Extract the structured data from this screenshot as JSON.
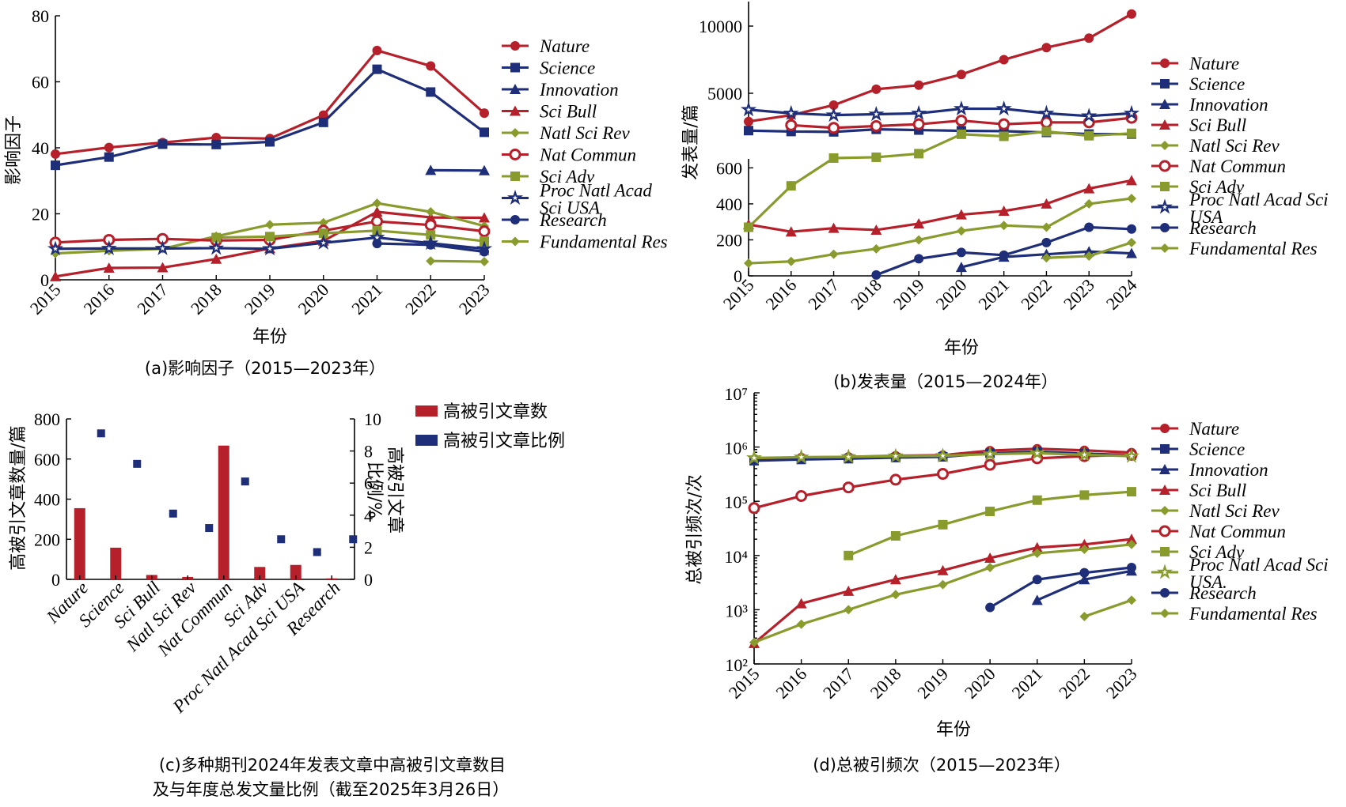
{
  "colors": {
    "red": "#b5202a",
    "navy": "#1e2e78",
    "olive": "#8a9b2e"
  },
  "chart_data": [
    {
      "id": "a",
      "type": "line",
      "caption": "(a)影响因子（2015—2023年）",
      "xlabel": "年份",
      "ylabel": "影响因子",
      "x": [
        2015,
        2016,
        2017,
        2018,
        2019,
        2020,
        2021,
        2022,
        2023
      ],
      "ylim": [
        0,
        80
      ],
      "yticks": [
        0,
        20,
        40,
        60,
        80
      ],
      "series": [
        {
          "name": "Nature",
          "color": "red",
          "marker": "circle",
          "values": [
            38.1,
            40.1,
            41.6,
            43.1,
            42.8,
            49.9,
            69.5,
            64.8,
            50.5
          ]
        },
        {
          "name": "Science",
          "color": "navy",
          "marker": "square",
          "values": [
            34.7,
            37.2,
            41.1,
            41.0,
            41.8,
            47.7,
            63.8,
            56.9,
            44.7
          ]
        },
        {
          "name": "Innovation",
          "color": "navy",
          "marker": "triangle",
          "values": [
            null,
            null,
            null,
            null,
            null,
            null,
            null,
            33.2,
            33.1
          ]
        },
        {
          "name": "Sci Bull",
          "color": "red",
          "marker": "triangle",
          "values": [
            1.0,
            3.6,
            3.7,
            6.3,
            9.5,
            11.8,
            20.6,
            18.9,
            18.8
          ]
        },
        {
          "name": "Natl Sci Rev",
          "color": "olive",
          "marker": "diamond",
          "values": [
            8.0,
            8.8,
            9.4,
            13.2,
            16.7,
            17.3,
            23.2,
            20.6,
            16.3
          ]
        },
        {
          "name": "Nat Commun",
          "color": "red",
          "marker": "ocircle",
          "values": [
            11.3,
            12.1,
            12.4,
            11.9,
            12.1,
            14.9,
            17.7,
            16.6,
            14.7
          ]
        },
        {
          "name": "Sci Adv",
          "color": "olive",
          "marker": "square",
          "values": [
            null,
            null,
            null,
            12.8,
            13.1,
            14.1,
            14.9,
            13.6,
            11.7
          ]
        },
        {
          "name": "Proc Natl Acad Sci USA",
          "color": "navy",
          "marker": "ostar",
          "values": [
            9.4,
            9.5,
            9.5,
            9.6,
            9.4,
            11.2,
            12.8,
            11.1,
            9.4
          ]
        },
        {
          "name": "Research",
          "color": "navy",
          "marker": "circle",
          "values": [
            null,
            null,
            null,
            null,
            null,
            null,
            11.0,
            10.6,
            8.5
          ]
        },
        {
          "name": "Fundamental Res",
          "color": "olive",
          "marker": "diamond",
          "values": [
            null,
            null,
            null,
            null,
            null,
            null,
            null,
            5.7,
            5.5
          ]
        }
      ]
    },
    {
      "id": "b",
      "type": "line",
      "caption": "(b)发表量（2015—2024年）",
      "xlabel": "年份",
      "ylabel": "发表量/篇",
      "x": [
        2015,
        2016,
        2017,
        2018,
        2019,
        2020,
        2021,
        2022,
        2023,
        2024
      ],
      "yticks_upper": [
        5000,
        10000
      ],
      "yticks_lower": [
        0,
        200,
        400,
        600
      ],
      "series": [
        {
          "name": "Nature",
          "color": "red",
          "marker": "circle",
          "values": [
            3450,
            3800,
            4350,
            5300,
            5600,
            6400,
            7500,
            8400,
            9100,
            10900
          ]
        },
        {
          "name": "Science",
          "color": "navy",
          "marker": "square",
          "values": [
            2950,
            2900,
            2880,
            3020,
            2980,
            2940,
            2920,
            2850,
            2760,
            2760
          ]
        },
        {
          "name": "Innovation",
          "color": "navy",
          "marker": "triangle",
          "values": [
            null,
            null,
            null,
            null,
            null,
            48,
            105,
            120,
            135,
            125
          ]
        },
        {
          "name": "Sci Bull",
          "color": "red",
          "marker": "triangle",
          "values": [
            285,
            245,
            265,
            255,
            290,
            340,
            360,
            400,
            485,
            530
          ]
        },
        {
          "name": "Natl Sci Rev",
          "color": "olive",
          "marker": "diamond",
          "values": [
            70,
            80,
            120,
            150,
            200,
            250,
            280,
            270,
            400,
            430
          ]
        },
        {
          "name": "Nat Commun",
          "color": "red",
          "marker": "ocircle",
          "values": [
            null,
            3250,
            3100,
            3200,
            3300,
            3500,
            3300,
            3400,
            3400,
            3650
          ]
        },
        {
          "name": "Sci Adv",
          "color": "olive",
          "marker": "square",
          "values": [
            270,
            500,
            720,
            790,
            1100,
            2750,
            2600,
            2900,
            2650,
            2800
          ]
        },
        {
          "name": "Proc Natl Acad Sci USA",
          "color": "navy",
          "marker": "ostar",
          "values": [
            4100,
            3900,
            3800,
            3850,
            3900,
            4150,
            4150,
            3900,
            3750,
            3900
          ]
        },
        {
          "name": "Research",
          "color": "navy",
          "marker": "circle",
          "values": [
            null,
            null,
            null,
            5,
            95,
            130,
            115,
            185,
            270,
            260
          ]
        },
        {
          "name": "Fundamental Res",
          "color": "olive",
          "marker": "diamond",
          "values": [
            null,
            null,
            null,
            null,
            null,
            null,
            null,
            100,
            110,
            185
          ]
        }
      ]
    },
    {
      "id": "c",
      "type": "bar",
      "caption": [
        "(c)多种期刊2024年发表文章中高被引文章数目",
        "及与年度总发文量比例（截至2025年3月26日）"
      ],
      "ylabel": "高被引文章数量/篇",
      "y2label": [
        "高被引文章",
        "比例/%"
      ],
      "ylim": [
        0,
        800
      ],
      "yticks": [
        0,
        200,
        400,
        600,
        800
      ],
      "y2lim": [
        0,
        10
      ],
      "y2ticks": [
        0,
        2,
        4,
        6,
        8,
        10
      ],
      "categories": [
        "Nature",
        "Science",
        "Sci Bull",
        "Natl Sci Rev",
        "Nat Commun",
        "Sci Adv",
        "Proc Natl Acad Sci USA",
        "Research"
      ],
      "series": [
        {
          "name": "高被引文章数",
          "color": "red",
          "values": [
            355,
            158,
            22,
            12,
            667,
            62,
            72,
            5
          ]
        },
        {
          "name": "高被引文章比例",
          "color": "navy",
          "values": [
            9.1,
            7.2,
            4.1,
            3.2,
            6.1,
            2.5,
            1.7,
            2.5
          ]
        }
      ]
    },
    {
      "id": "d",
      "type": "line",
      "yscale": "log",
      "caption": "(d)总被引频次（2015—2023年）",
      "xlabel": "年份",
      "ylabel": "总被引频次/次",
      "x": [
        2015,
        2016,
        2017,
        2018,
        2019,
        2020,
        2021,
        2022,
        2023
      ],
      "ylim": [
        100,
        10000000
      ],
      "ytick_labels": [
        "10²",
        "10³",
        "10⁴",
        "10⁵",
        "10⁶",
        "10⁷"
      ],
      "series": [
        {
          "name": "Nature",
          "color": "red",
          "marker": "circle",
          "values": [
            590000,
            640000,
            660000,
            690000,
            710000,
            860000,
            930000,
            870000,
            790000
          ]
        },
        {
          "name": "Science",
          "color": "navy",
          "marker": "square",
          "values": [
            560000,
            590000,
            610000,
            640000,
            660000,
            770000,
            820000,
            760000,
            710000
          ]
        },
        {
          "name": "Innovation",
          "color": "navy",
          "marker": "triangle",
          "values": [
            null,
            null,
            null,
            null,
            null,
            null,
            1500,
            3600,
            5200
          ]
        },
        {
          "name": "Sci Bull",
          "color": "red",
          "marker": "triangle",
          "values": [
            240,
            1300,
            2200,
            3600,
            5300,
            9000,
            14000,
            16000,
            20000
          ]
        },
        {
          "name": "Natl Sci Rev",
          "color": "olive",
          "marker": "diamond",
          "values": [
            250,
            540,
            1000,
            1900,
            2900,
            6000,
            11000,
            13000,
            16000
          ]
        },
        {
          "name": "Nat Commun",
          "color": "red",
          "marker": "ocircle",
          "values": [
            75000,
            125000,
            180000,
            250000,
            320000,
            470000,
            620000,
            680000,
            720000
          ]
        },
        {
          "name": "Sci Adv",
          "color": "olive",
          "marker": "square",
          "values": [
            null,
            null,
            10000,
            23000,
            37000,
            65000,
            105000,
            130000,
            150000
          ]
        },
        {
          "name": "Proc Natl Acad Sci USA.",
          "color": "olive",
          "marker": "ostar",
          "values": [
            630000,
            650000,
            660000,
            680000,
            690000,
            740000,
            770000,
            720000,
            680000
          ]
        },
        {
          "name": "Research",
          "color": "navy",
          "marker": "circle",
          "values": [
            null,
            null,
            null,
            null,
            null,
            1100,
            3600,
            4800,
            6000
          ]
        },
        {
          "name": "Fundamental Res",
          "color": "olive",
          "marker": "diamond",
          "values": [
            null,
            null,
            null,
            null,
            null,
            null,
            null,
            750,
            1500
          ]
        }
      ]
    }
  ]
}
